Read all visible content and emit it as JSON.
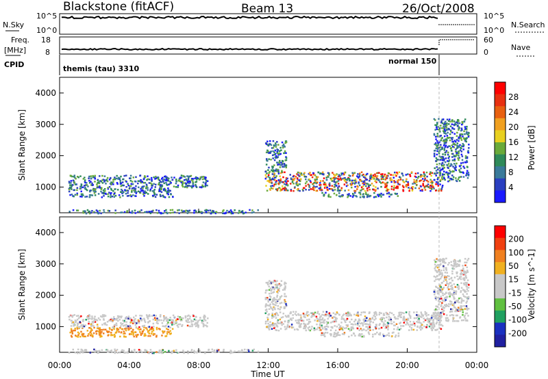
{
  "header": {
    "station": "Blackstone (fitACF)",
    "beam": "Beam 13",
    "date": "26/Oct/2008"
  },
  "summary_panels": {
    "nsky": {
      "label": "N.Sky",
      "ticks": [
        "10^5",
        "10^0"
      ],
      "right_label": "N.Search",
      "right_ticks": [
        "10^5",
        "10^0"
      ]
    },
    "freq": {
      "label_line1": "Freq.",
      "label_line2": "[MHz]",
      "ticks": [
        "18",
        "8"
      ],
      "right_label": "Nave",
      "right_ticks": [
        "60",
        "0"
      ]
    },
    "cpid": {
      "label": "CPID",
      "mode1": "themis (tau) 3310",
      "mode2": "normal 150"
    }
  },
  "colors": {
    "power_scale": [
      "#1a1aff",
      "#2a3fc0",
      "#3a7a9a",
      "#2f8a5a",
      "#6aaa3a",
      "#e8d020",
      "#f0a020",
      "#e86010",
      "#e83010",
      "#ff0000"
    ],
    "velocity_scale": [
      "#2020a0",
      "#1a30c0",
      "#20a060",
      "#60c040",
      "#c8c8c8",
      "#c8c8c8",
      "#f0b020",
      "#f08020",
      "#f04010",
      "#ff0000"
    ]
  },
  "chart_data": [
    {
      "type": "heatmap",
      "name": "power",
      "ylabel": "Slant Range [km]",
      "xlabel": "Time UT",
      "x_ticks": [
        "00:00",
        "04:00",
        "08:00",
        "12:00",
        "16:00",
        "20:00",
        "00:00"
      ],
      "y_ticks": [
        1000,
        2000,
        3000,
        4000
      ],
      "ylim": [
        180,
        4500
      ],
      "xlim_hours": [
        0,
        24
      ],
      "colorbar": {
        "label": "Power [dB]",
        "ticks": [
          "28",
          "24",
          "20",
          "16",
          "12",
          "8",
          "4"
        ]
      },
      "regions": [
        {
          "t": [
            0.5,
            6.5
          ],
          "r": [
            700,
            1000
          ]
        },
        {
          "t": [
            0.5,
            8.5
          ],
          "r": [
            1000,
            1400
          ]
        },
        {
          "t": [
            0.5,
            11.5
          ],
          "r": [
            180,
            300
          ]
        },
        {
          "t": [
            11.8,
            22.0
          ],
          "r": [
            900,
            1500
          ]
        },
        {
          "t": [
            11.8,
            13.0
          ],
          "r": [
            1500,
            2500
          ]
        },
        {
          "t": [
            15.0,
            19.5
          ],
          "r": [
            700,
            850
          ]
        },
        {
          "t": [
            21.5,
            23.5
          ],
          "r": [
            1200,
            3200
          ]
        }
      ]
    },
    {
      "type": "heatmap",
      "name": "velocity",
      "ylabel": "Slant Range [km]",
      "xlabel": "Time UT",
      "x_ticks": [
        "00:00",
        "04:00",
        "08:00",
        "12:00",
        "16:00",
        "20:00",
        "00:00"
      ],
      "y_ticks": [
        1000,
        2000,
        3000,
        4000
      ],
      "ylim": [
        180,
        4500
      ],
      "xlim_hours": [
        0,
        24
      ],
      "colorbar": {
        "label": "Velocity [m s^-1]",
        "ticks": [
          "200",
          "100",
          "50",
          "15",
          "-15",
          "-50",
          "-100",
          "-200"
        ]
      },
      "regions": [
        {
          "t": [
            0.5,
            6.5
          ],
          "r": [
            700,
            1000
          ]
        },
        {
          "t": [
            0.5,
            8.5
          ],
          "r": [
            1000,
            1400
          ]
        },
        {
          "t": [
            0.5,
            11.5
          ],
          "r": [
            180,
            300
          ]
        },
        {
          "t": [
            11.8,
            22.0
          ],
          "r": [
            900,
            1500
          ]
        },
        {
          "t": [
            11.8,
            13.0
          ],
          "r": [
            1500,
            2500
          ]
        },
        {
          "t": [
            15.0,
            19.5
          ],
          "r": [
            700,
            850
          ]
        },
        {
          "t": [
            21.5,
            23.5
          ],
          "r": [
            1200,
            3200
          ]
        }
      ]
    }
  ],
  "xlabel": "Time UT"
}
